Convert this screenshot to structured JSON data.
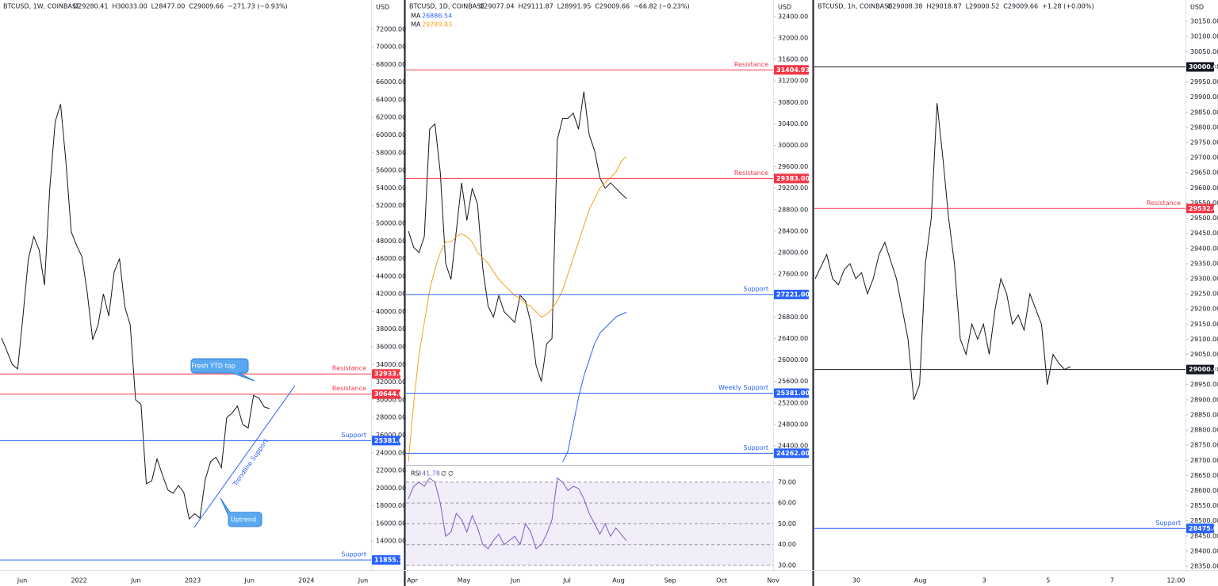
{
  "chart_data": [
    {
      "type": "line",
      "currency": "USD",
      "header": {
        "symbol": "BTCUSD, 1W, COINBASE",
        "fields": [
          "O29280.41",
          "H30033.00",
          "L28477.00",
          "C29009.66",
          "−271.73 (−0.93%)"
        ]
      },
      "ylim": [
        10700,
        75300
      ],
      "yticks": [
        {
          "value": 72000,
          "label": "72000.00"
        },
        {
          "value": 70000,
          "label": "70000.00"
        },
        {
          "value": 68000,
          "label": "68000.00"
        },
        {
          "value": 66000,
          "label": "66000.00"
        },
        {
          "value": 64000,
          "label": "64000.00"
        },
        {
          "value": 62000,
          "label": "62000.00"
        },
        {
          "value": 60000,
          "label": "60000.00"
        },
        {
          "value": 58000,
          "label": "58000.00"
        },
        {
          "value": 56000,
          "label": "56000.00"
        },
        {
          "value": 54000,
          "label": "54000.00"
        },
        {
          "value": 52000,
          "label": "52000.00"
        },
        {
          "value": 50000,
          "label": "50000.00"
        },
        {
          "value": 48000,
          "label": "48000.00"
        },
        {
          "value": 46000,
          "label": "46000.00"
        },
        {
          "value": 44000,
          "label": "44000.00"
        },
        {
          "value": 42000,
          "label": "42000.00"
        },
        {
          "value": 40000,
          "label": "40000.00"
        },
        {
          "value": 38000,
          "label": "38000.00"
        },
        {
          "value": 36000,
          "label": "36000.00"
        },
        {
          "value": 34000,
          "label": "34000.00"
        },
        {
          "value": 32000,
          "label": "32000.00"
        },
        {
          "value": 30000,
          "label": "30000.00"
        },
        {
          "value": 28000,
          "label": "28000.00"
        },
        {
          "value": 26000,
          "label": "26000.00"
        },
        {
          "value": 24000,
          "label": "24000.00"
        },
        {
          "value": 22000,
          "label": "22000.00"
        },
        {
          "value": 20000,
          "label": "20000.00"
        },
        {
          "value": 18000,
          "label": "18000.00"
        },
        {
          "value": 16000,
          "label": "16000.00"
        },
        {
          "value": 14000,
          "label": "14000.00"
        }
      ],
      "xlabels": [
        "Jun",
        "2022",
        "Jun",
        "2023",
        "Jun",
        "2024",
        "Jun"
      ],
      "levels": [
        {
          "name": "Resistance",
          "value": 32933,
          "value_label": "32933.00",
          "color": "#f23645"
        },
        {
          "name": "Resistance",
          "value": 30644,
          "value_label": "30644.00",
          "color": "#f23645"
        },
        {
          "name": "Support",
          "value": 25381.05,
          "value_label": "25381.05",
          "color": "#2962ff"
        },
        {
          "name": "Support",
          "value": 11855.73,
          "value_label": "11855.73",
          "color": "#2962ff"
        }
      ],
      "annotations": [
        "Fresh YTD top",
        "Uptrend",
        "Trendline Support"
      ],
      "series": [
        {
          "color": "#131722",
          "values": [
            37000,
            35500,
            34000,
            33500,
            39500,
            46000,
            48500,
            47000,
            43000,
            54000,
            61500,
            63500,
            57000,
            49000,
            47500,
            46200,
            42000,
            36800,
            38500,
            42000,
            39500,
            44500,
            46000,
            40500,
            38500,
            30000,
            29500,
            20500,
            20800,
            23300,
            21500,
            19800,
            19400,
            20300,
            19500,
            16500,
            17100,
            16600,
            21000,
            23000,
            23500,
            22300,
            28000,
            28500,
            29300,
            27200,
            26800,
            30500,
            30200,
            29200,
            29000
          ]
        }
      ]
    },
    {
      "type": "line",
      "currency": "USD",
      "header": {
        "symbol": "BTCUSD, 1D, COINBASE",
        "fields": [
          "O29077.04",
          "H29111.87",
          "L28991.95",
          "C29009.66",
          "−66.82 (−0.23%)"
        ]
      },
      "ylim": [
        24075,
        32708
      ],
      "yticks": [
        {
          "value": 32400,
          "label": "32400.00"
        },
        {
          "value": 32000,
          "label": "32000.00"
        },
        {
          "value": 31600,
          "label": "31600.00"
        },
        {
          "value": 31200,
          "label": "31200.00"
        },
        {
          "value": 30800,
          "label": "30800.00"
        },
        {
          "value": 30400,
          "label": "30400.00"
        },
        {
          "value": 30000,
          "label": "30000.00"
        },
        {
          "value": 29600,
          "label": "29600.00"
        },
        {
          "value": 29200,
          "label": "29200.00"
        },
        {
          "value": 28800,
          "label": "28800.00"
        },
        {
          "value": 28400,
          "label": "28400.00"
        },
        {
          "value": 28000,
          "label": "28000.00"
        },
        {
          "value": 27600,
          "label": "27600.00"
        },
        {
          "value": 27200,
          "label": "27200.00"
        },
        {
          "value": 26800,
          "label": "26800.00"
        },
        {
          "value": 26400,
          "label": "26400.00"
        },
        {
          "value": 26000,
          "label": "26000.00"
        },
        {
          "value": 25600,
          "label": "25600.00"
        },
        {
          "value": 25200,
          "label": "25200.00"
        },
        {
          "value": 24800,
          "label": "24800.00"
        },
        {
          "value": 24400,
          "label": "24400.00"
        }
      ],
      "xlabels": [
        "Apr",
        "May",
        "Jun",
        "Jul",
        "Aug",
        "Sep",
        "Oct",
        "Nov"
      ],
      "levels": [
        {
          "name": "Resistance",
          "value": 31404.93,
          "value_label": "31404.93",
          "color": "#f23645"
        },
        {
          "name": "Resistance",
          "value": 29383,
          "value_label": "29383.00",
          "color": "#f23645"
        },
        {
          "name": "Support",
          "value": 27221,
          "value_label": "27221.00",
          "color": "#2962ff"
        },
        {
          "name": "Weekly Support",
          "value": 25381,
          "value_label": "25381.00",
          "color": "#2962ff"
        },
        {
          "name": "Support",
          "value": 24262,
          "value_label": "24262.00",
          "color": "#2962ff"
        }
      ],
      "series": [
        {
          "color": "#131722",
          "values": [
            28400,
            28100,
            28000,
            28300,
            30300,
            30400,
            29500,
            27800,
            27500,
            28400,
            29300,
            28600,
            29200,
            28900,
            27700,
            27000,
            26800,
            27200,
            26900,
            26800,
            26700,
            27200,
            27100,
            26700,
            25900,
            25600,
            26300,
            26400,
            30100,
            30500,
            30500,
            30600,
            30300,
            31000,
            30200,
            29900,
            29400,
            29200,
            29300,
            29200,
            29100,
            29009
          ]
        },
        {
          "name": "MA",
          "last_label": "26886.54",
          "color": "#2962ff",
          "values": [
            null,
            null,
            null,
            null,
            null,
            null,
            null,
            null,
            null,
            null,
            null,
            null,
            null,
            null,
            null,
            null,
            null,
            null,
            null,
            null,
            null,
            null,
            null,
            null,
            null,
            null,
            null,
            null,
            null,
            24100,
            24300,
            24800,
            25300,
            25700,
            26000,
            26300,
            26500,
            26600,
            26700,
            26800,
            26850,
            26887
          ]
        },
        {
          "name": "MA",
          "last_label": "29789.83",
          "color": "#f7a21b",
          "values": [
            24100,
            25200,
            26100,
            26700,
            27300,
            27700,
            28000,
            28200,
            28200,
            28300,
            28350,
            28300,
            28200,
            28000,
            27900,
            27800,
            27650,
            27500,
            27400,
            27300,
            27200,
            27150,
            27050,
            27000,
            26900,
            26800,
            26850,
            26950,
            27100,
            27300,
            27600,
            27900,
            28200,
            28500,
            28800,
            29000,
            29200,
            29300,
            29400,
            29500,
            29700,
            29790
          ]
        }
      ],
      "rsi": {
        "label": "RSI",
        "value_label": "41.78",
        "extra": [
          "∅",
          "∅"
        ],
        "color": "#7e57c2",
        "ylim": [
          27.7,
          77.2
        ],
        "yticks": [
          {
            "value": 70,
            "label": "70.00"
          },
          {
            "value": 60,
            "label": "60.00"
          },
          {
            "value": 50,
            "label": "50.00"
          },
          {
            "value": 40,
            "label": "40.00"
          },
          {
            "value": 30,
            "label": "30.00"
          }
        ],
        "values": [
          62,
          68,
          70,
          68,
          72,
          70,
          60,
          44,
          46,
          55,
          52,
          46,
          54,
          48,
          40,
          38,
          42,
          45,
          40,
          42,
          44,
          40,
          50,
          46,
          38,
          40,
          45,
          52,
          72,
          70,
          66,
          68,
          67,
          62,
          55,
          50,
          45,
          50,
          44,
          48,
          45,
          41.78
        ]
      }
    },
    {
      "type": "line",
      "currency": "USD",
      "header": {
        "symbol": "BTCUSD, 1h, COINBASE",
        "fields": [
          "O29008.38",
          "H29018.87",
          "L29000.52",
          "C29009.66",
          "+1.28 (+0.00%)"
        ]
      },
      "ylim": [
        28337,
        30221
      ],
      "yticks": [
        {
          "value": 30150,
          "label": "30150.00"
        },
        {
          "value": 30100,
          "label": "30100.00"
        },
        {
          "value": 30050,
          "label": "30050.00"
        },
        {
          "value": 30000,
          "label": "30000.00"
        },
        {
          "value": 29950,
          "label": "29950.00"
        },
        {
          "value": 29900,
          "label": "29900.00"
        },
        {
          "value": 29850,
          "label": "29850.00"
        },
        {
          "value": 29800,
          "label": "29800.00"
        },
        {
          "value": 29750,
          "label": "29750.00"
        },
        {
          "value": 29700,
          "label": "29700.00"
        },
        {
          "value": 29650,
          "label": "29650.00"
        },
        {
          "value": 29600,
          "label": "29600.00"
        },
        {
          "value": 29550,
          "label": "29550.00"
        },
        {
          "value": 29500,
          "label": "29500.00"
        },
        {
          "value": 29450,
          "label": "29450.00"
        },
        {
          "value": 29400,
          "label": "29400.00"
        },
        {
          "value": 29350,
          "label": "29350.00"
        },
        {
          "value": 29300,
          "label": "29300.00"
        },
        {
          "value": 29250,
          "label": "29250.00"
        },
        {
          "value": 29200,
          "label": "29200.00"
        },
        {
          "value": 29150,
          "label": "29150.00"
        },
        {
          "value": 29100,
          "label": "29100.00"
        },
        {
          "value": 29050,
          "label": "29050.00"
        },
        {
          "value": 29000,
          "label": "29000.00"
        },
        {
          "value": 28950,
          "label": "28950.00"
        },
        {
          "value": 28900,
          "label": "28900.00"
        },
        {
          "value": 28850,
          "label": "28850.00"
        },
        {
          "value": 28800,
          "label": "28800.00"
        },
        {
          "value": 28750,
          "label": "28750.00"
        },
        {
          "value": 28700,
          "label": "28700.00"
        },
        {
          "value": 28650,
          "label": "28650.00"
        },
        {
          "value": 28600,
          "label": "28600.00"
        },
        {
          "value": 28550,
          "label": "28550.00"
        },
        {
          "value": 28500,
          "label": "28500.00"
        },
        {
          "value": 28450,
          "label": "28450.00"
        },
        {
          "value": 28400,
          "label": "28400.00"
        },
        {
          "value": 28350,
          "label": "28350.00"
        }
      ],
      "xlabels": [
        "30",
        "Aug",
        "3",
        "5",
        "7",
        "12:00"
      ],
      "levels": [
        {
          "value": 30000,
          "value_label": "30000.00",
          "color": "#131722"
        },
        {
          "name": "Resistance",
          "value": 29532.07,
          "value_label": "29532.07",
          "color": "#f23645"
        },
        {
          "value": 29000,
          "value_label": "29000.00",
          "color": "#131722"
        },
        {
          "name": "Support",
          "value": 28475,
          "value_label": "28475.00",
          "color": "#2962ff"
        }
      ],
      "series": [
        {
          "color": "#131722",
          "values": [
            29300,
            29340,
            29380,
            29300,
            29280,
            29330,
            29350,
            29300,
            29320,
            29250,
            29300,
            29380,
            29420,
            29360,
            29300,
            29200,
            29100,
            28900,
            28950,
            29350,
            29500,
            29880,
            29700,
            29500,
            29350,
            29100,
            29050,
            29150,
            29100,
            29150,
            29050,
            29200,
            29300,
            29250,
            29150,
            29180,
            29130,
            29250,
            29200,
            29150,
            28950,
            29050,
            29020,
            29000,
            29010
          ]
        }
      ]
    }
  ]
}
